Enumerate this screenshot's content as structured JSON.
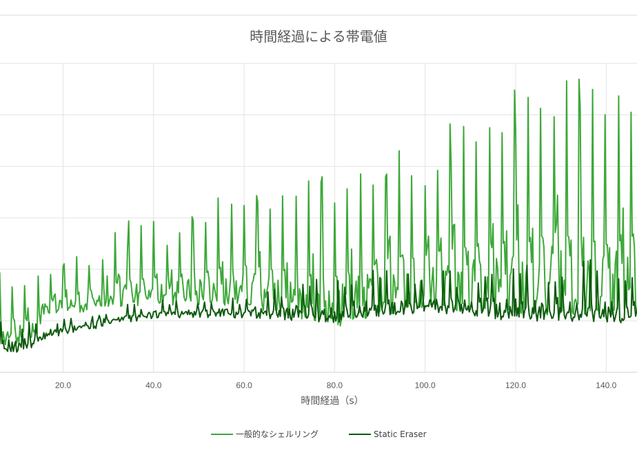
{
  "chart_data": {
    "type": "line",
    "title": "時間経過による帯電値",
    "xlabel": "時間経過（s）",
    "ylabel": "",
    "x_tick_labels": [
      "20.0",
      "40.0",
      "60.0",
      "80.0",
      "100.0",
      "120.0",
      "140.0"
    ],
    "xlim": [
      6,
      147
    ],
    "ylim": [
      0,
      6
    ],
    "grid": true,
    "legend_position": "bottom",
    "series": [
      {
        "name": "一般的なシェルリング",
        "color": "#3ea83a",
        "base": [
          [
            6,
            0.5
          ],
          [
            10,
            0.55
          ],
          [
            14,
            0.6
          ],
          [
            16,
            1.05
          ],
          [
            20,
            1.15
          ],
          [
            30,
            1.2
          ],
          [
            40,
            1.3
          ],
          [
            60,
            1.3
          ],
          [
            80,
            0.85
          ],
          [
            100,
            1.25
          ],
          [
            120,
            1.1
          ],
          [
            140,
            1.1
          ],
          [
            147,
            1.1
          ]
        ],
        "peaks": [
          [
            16,
            1.8
          ],
          [
            21,
            2.0
          ],
          [
            26,
            2.3
          ],
          [
            31,
            2.5
          ],
          [
            36,
            2.8
          ],
          [
            42,
            2.7
          ],
          [
            48,
            2.9
          ],
          [
            53,
            3.1
          ],
          [
            58,
            3.3
          ],
          [
            63,
            3.3
          ],
          [
            68,
            3.6
          ],
          [
            74,
            3.4
          ],
          [
            79,
            3.6
          ],
          [
            84,
            3.7
          ],
          [
            89,
            4.0
          ],
          [
            95,
            4.1
          ],
          [
            100,
            4.0
          ],
          [
            105,
            4.4
          ],
          [
            110,
            4.6
          ],
          [
            115,
            5.0
          ],
          [
            120,
            5.1
          ],
          [
            126,
            5.3
          ],
          [
            130,
            5.5
          ],
          [
            135,
            5.2
          ],
          [
            140,
            5.0
          ],
          [
            145,
            5.4
          ]
        ]
      },
      {
        "name": "Static Eraser",
        "color": "#0e5a0e",
        "base": [
          [
            6,
            0.32
          ],
          [
            12,
            0.42
          ],
          [
            16,
            0.6
          ],
          [
            20,
            0.72
          ],
          [
            30,
            0.9
          ],
          [
            40,
            1.05
          ],
          [
            60,
            1.05
          ],
          [
            80,
            0.95
          ],
          [
            100,
            1.15
          ],
          [
            120,
            1.0
          ],
          [
            140,
            0.95
          ],
          [
            147,
            0.95
          ]
        ],
        "peaks": [
          [
            16,
            0.9
          ],
          [
            22,
            1.0
          ],
          [
            28,
            1.1
          ],
          [
            34,
            1.2
          ],
          [
            40,
            1.3
          ],
          [
            46,
            1.3
          ],
          [
            52,
            1.4
          ],
          [
            58,
            1.4
          ],
          [
            64,
            1.5
          ],
          [
            70,
            1.6
          ],
          [
            76,
            1.7
          ],
          [
            82,
            1.8
          ],
          [
            88,
            1.8
          ],
          [
            94,
            1.8
          ],
          [
            100,
            1.9
          ],
          [
            106,
            1.8
          ],
          [
            112,
            1.8
          ],
          [
            118,
            1.9
          ],
          [
            124,
            1.9
          ],
          [
            130,
            1.9
          ],
          [
            136,
            2.0
          ],
          [
            142,
            1.9
          ],
          [
            147,
            1.9
          ]
        ]
      }
    ]
  }
}
